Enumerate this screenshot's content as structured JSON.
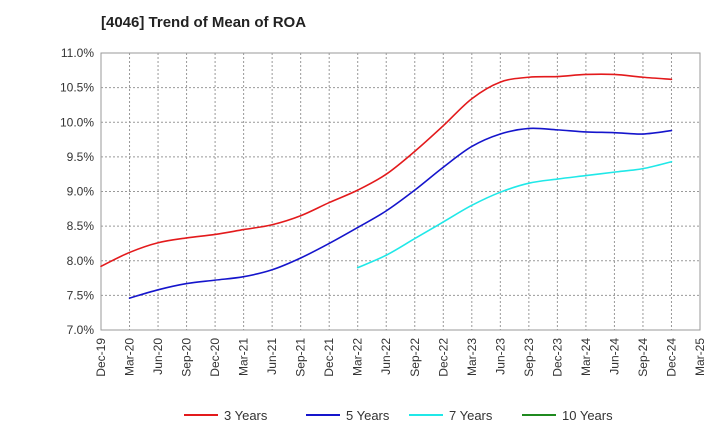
{
  "chart_data": {
    "type": "line",
    "title": "[4046]  Trend of Mean of ROA",
    "xlabel": "",
    "ylabel": "",
    "categories": [
      "Dec-19",
      "Mar-20",
      "Jun-20",
      "Sep-20",
      "Dec-20",
      "Mar-21",
      "Jun-21",
      "Sep-21",
      "Dec-21",
      "Mar-22",
      "Jun-22",
      "Sep-22",
      "Dec-22",
      "Mar-23",
      "Jun-23",
      "Sep-23",
      "Dec-23",
      "Mar-24",
      "Jun-24",
      "Sep-24",
      "Dec-24",
      "Mar-25"
    ],
    "ylim": [
      7.0,
      11.0
    ],
    "yticks": [
      "7.0%",
      "7.5%",
      "8.0%",
      "8.5%",
      "9.0%",
      "9.5%",
      "10.0%",
      "10.5%",
      "11.0%"
    ],
    "grid": true,
    "legend_position": "bottom",
    "series": [
      {
        "name": "3 Years",
        "color": "#e31a1c",
        "values": [
          7.92,
          8.12,
          8.26,
          8.33,
          8.38,
          8.45,
          8.52,
          8.65,
          8.84,
          9.02,
          9.25,
          9.58,
          9.95,
          10.34,
          10.58,
          10.65,
          10.66,
          10.69,
          10.69,
          10.65,
          10.62,
          null
        ]
      },
      {
        "name": "5 Years",
        "color": "#1515cc",
        "values": [
          null,
          7.46,
          7.58,
          7.67,
          7.72,
          7.77,
          7.87,
          8.04,
          8.25,
          8.48,
          8.72,
          9.02,
          9.35,
          9.65,
          9.83,
          9.91,
          9.89,
          9.86,
          9.85,
          9.83,
          9.88,
          null
        ]
      },
      {
        "name": "7 Years",
        "color": "#20e8e8",
        "values": [
          null,
          null,
          null,
          null,
          null,
          null,
          null,
          null,
          null,
          7.9,
          8.08,
          8.32,
          8.56,
          8.8,
          8.99,
          9.12,
          9.18,
          9.23,
          9.28,
          9.33,
          9.43,
          null
        ]
      },
      {
        "name": "10 Years",
        "color": "#1f8a1f",
        "values": [
          null,
          null,
          null,
          null,
          null,
          null,
          null,
          null,
          null,
          null,
          null,
          null,
          null,
          null,
          null,
          null,
          null,
          null,
          null,
          null,
          null,
          null
        ]
      }
    ]
  }
}
